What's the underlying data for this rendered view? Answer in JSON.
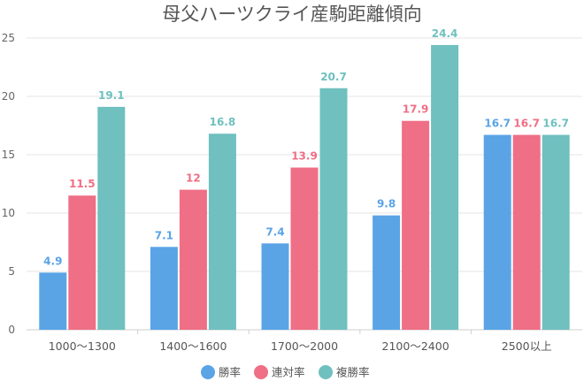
{
  "chart_data": {
    "type": "bar",
    "title": "母父ハーツクライ産駒距離傾向",
    "categories": [
      "1000～1300",
      "1400～1600",
      "1700～2000",
      "2100～2400",
      "2500以上"
    ],
    "series": [
      {
        "name": "勝率",
        "color": "#5aa4e6",
        "values": [
          4.9,
          7.1,
          7.4,
          9.8,
          16.7
        ]
      },
      {
        "name": "連対率",
        "color": "#ef6f86",
        "values": [
          11.5,
          12,
          13.9,
          17.9,
          16.7
        ]
      },
      {
        "name": "複勝率",
        "color": "#6fc0bf",
        "values": [
          19.1,
          16.8,
          20.7,
          24.4,
          16.7
        ]
      }
    ],
    "y_ticks": [
      0,
      5,
      10,
      15,
      20,
      25
    ],
    "ylim": [
      0,
      25
    ],
    "grid": true,
    "legend_position": "bottom"
  }
}
